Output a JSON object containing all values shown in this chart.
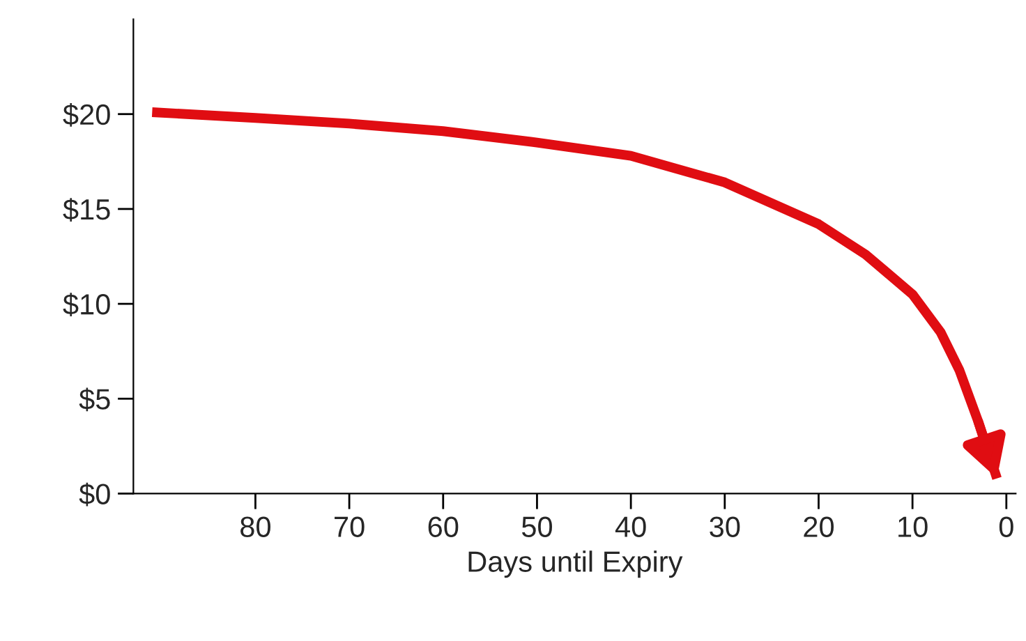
{
  "chart_data": {
    "type": "line",
    "xlabel": "Days until Expiry",
    "x": [
      91,
      80,
      70,
      60,
      50,
      40,
      30,
      20,
      15,
      10,
      7,
      5,
      3,
      1
    ],
    "series": [
      {
        "color": "#e00d12",
        "values": [
          20.1,
          19.8,
          19.5,
          19.1,
          18.5,
          17.8,
          16.4,
          14.2,
          12.6,
          10.5,
          8.5,
          6.5,
          3.8,
          0.8
        ]
      }
    ],
    "xlim": [
      93,
      -1
    ],
    "ylim": [
      0,
      25
    ],
    "xticks": [
      80,
      70,
      60,
      50,
      40,
      30,
      20,
      10,
      0
    ],
    "yticks": [
      {
        "value": 0,
        "label": "$0"
      },
      {
        "value": 5,
        "label": "$5"
      },
      {
        "value": 10,
        "label": "$10"
      },
      {
        "value": 15,
        "label": "$15"
      },
      {
        "value": 20,
        "label": "$20"
      }
    ],
    "grid": false,
    "legend": false,
    "marker": "none",
    "line_style": "solid"
  }
}
